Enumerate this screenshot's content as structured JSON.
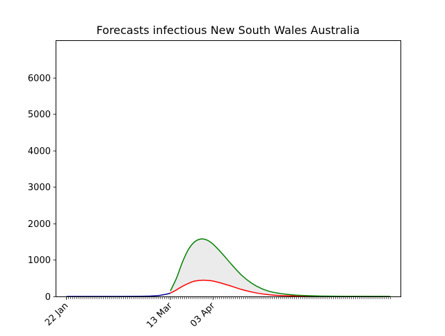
{
  "chart_data": {
    "type": "line",
    "title": "Forecasts infectious New South Wales Australia",
    "xlabel": "",
    "ylabel": "",
    "x_axis": {
      "type": "date",
      "start": "2020-01-22",
      "end": "2020-06-29",
      "tick_labels": [
        "22 Jan",
        "13 Mar",
        "03 Apr"
      ],
      "tick_dates": [
        "2020-01-22",
        "2020-03-13",
        "2020-04-03"
      ],
      "minor_ticks": "daily"
    },
    "ylim": [
      0,
      7000
    ],
    "yticks": [
      0,
      1000,
      2000,
      3000,
      4000,
      5000,
      6000
    ],
    "grid": false,
    "legend": "none",
    "series": [
      {
        "role": "observed",
        "color": "#00008b",
        "points": [
          [
            "2020-01-22",
            0
          ],
          [
            "2020-02-05",
            0
          ],
          [
            "2020-02-19",
            1
          ],
          [
            "2020-02-26",
            3
          ],
          [
            "2020-03-01",
            6
          ],
          [
            "2020-03-04",
            13
          ],
          [
            "2020-03-07",
            24
          ],
          [
            "2020-03-09",
            40
          ],
          [
            "2020-03-11",
            62
          ],
          [
            "2020-03-13",
            90
          ]
        ]
      },
      {
        "role": "forecast-upper",
        "color": "#008000",
        "points": [
          [
            "2020-03-13",
            150
          ],
          [
            "2020-03-16",
            500
          ],
          [
            "2020-03-19",
            950
          ],
          [
            "2020-03-22",
            1300
          ],
          [
            "2020-03-25",
            1500
          ],
          [
            "2020-03-28",
            1575
          ],
          [
            "2020-03-31",
            1545
          ],
          [
            "2020-04-03",
            1430
          ],
          [
            "2020-04-07",
            1200
          ],
          [
            "2020-04-12",
            880
          ],
          [
            "2020-04-17",
            580
          ],
          [
            "2020-04-22",
            360
          ],
          [
            "2020-04-27",
            210
          ],
          [
            "2020-05-02",
            120
          ],
          [
            "2020-05-09",
            60
          ],
          [
            "2020-05-16",
            28
          ],
          [
            "2020-05-26",
            10
          ],
          [
            "2020-06-08",
            3
          ],
          [
            "2020-06-29",
            1
          ]
        ]
      },
      {
        "role": "forecast-lower",
        "color": "#ff0000",
        "points": [
          [
            "2020-03-13",
            90
          ],
          [
            "2020-03-16",
            180
          ],
          [
            "2020-03-19",
            280
          ],
          [
            "2020-03-22",
            360
          ],
          [
            "2020-03-25",
            420
          ],
          [
            "2020-03-29",
            445
          ],
          [
            "2020-04-02",
            430
          ],
          [
            "2020-04-06",
            380
          ],
          [
            "2020-04-12",
            280
          ],
          [
            "2020-04-17",
            190
          ],
          [
            "2020-04-22",
            120
          ],
          [
            "2020-04-27",
            70
          ],
          [
            "2020-05-02",
            38
          ],
          [
            "2020-05-09",
            18
          ],
          [
            "2020-05-20",
            6
          ],
          [
            "2020-06-08",
            2
          ],
          [
            "2020-06-29",
            1
          ]
        ]
      }
    ],
    "band": {
      "between": [
        "forecast-lower",
        "forecast-upper"
      ],
      "color": "#ebebeb"
    }
  }
}
